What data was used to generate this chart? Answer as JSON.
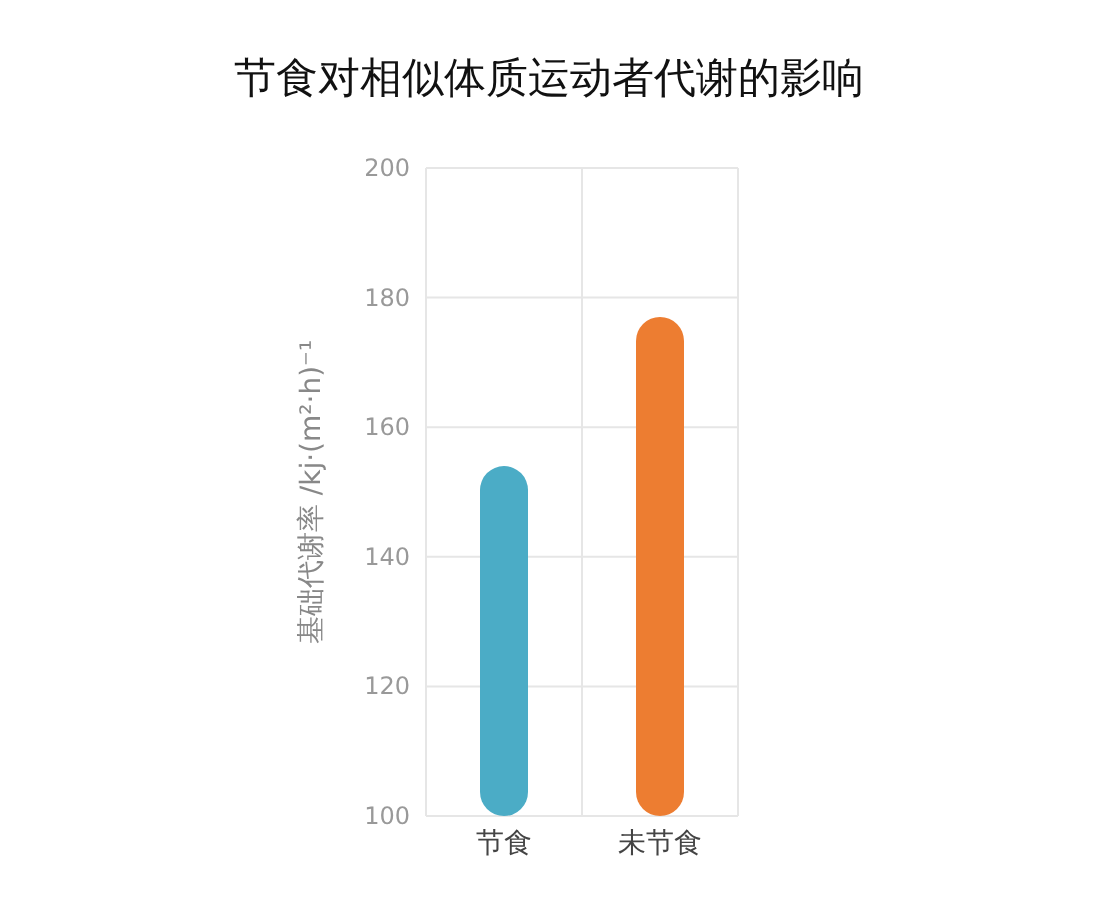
{
  "chart_data": {
    "type": "bar",
    "title": "节食对相似体质运动者代谢的影响",
    "ylabel": "基础代谢率 /kj·(m²·h)⁻¹",
    "categories": [
      "节食",
      "未节食"
    ],
    "colors": [
      "#4bacc6",
      "#ed7d31"
    ],
    "values": [
      154,
      177
    ],
    "ylim": [
      100,
      200
    ],
    "yticks": [
      100,
      120,
      140,
      160,
      180,
      200
    ],
    "grid": true
  }
}
